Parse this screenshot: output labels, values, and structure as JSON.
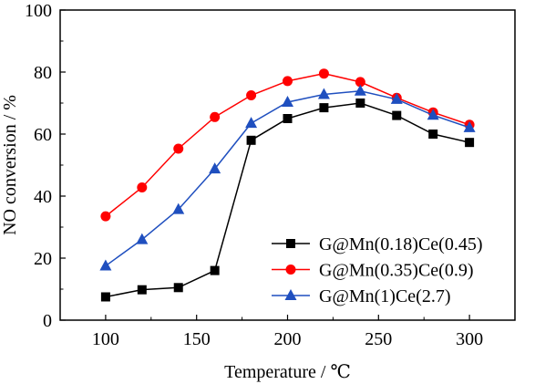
{
  "chart_data": {
    "type": "line",
    "xlabel": "Temperature / ℃",
    "ylabel": "NO conversion / %",
    "xlim": [
      75,
      325
    ],
    "ylim": [
      0,
      100
    ],
    "x_ticks": [
      100,
      150,
      200,
      250,
      300
    ],
    "y_ticks": [
      0,
      20,
      40,
      60,
      80,
      100
    ],
    "grid": false,
    "legend_position": "lower-right",
    "x": [
      100,
      120,
      140,
      160,
      180,
      200,
      220,
      240,
      260,
      280,
      300
    ],
    "series": [
      {
        "name": "G@Mn(0.18)Ce(0.45)",
        "marker": "square",
        "color": "#000000",
        "values": [
          7.5,
          9.8,
          10.5,
          16,
          58,
          65,
          68.5,
          70,
          66,
          60,
          57.3
        ]
      },
      {
        "name": "G@Mn(0.35)Ce(0.9)",
        "marker": "circle",
        "color": "#ff0000",
        "values": [
          33.5,
          42.8,
          55.3,
          65.5,
          72.5,
          77.1,
          79.5,
          76.8,
          71.7,
          67,
          63
        ]
      },
      {
        "name": "G@Mn(1)Ce(2.7)",
        "marker": "triangle",
        "color": "#1f4fbf",
        "values": [
          17.5,
          26,
          35.7,
          48.8,
          63.5,
          70.3,
          72.8,
          73.9,
          71.2,
          66.1,
          62.1
        ]
      }
    ]
  }
}
